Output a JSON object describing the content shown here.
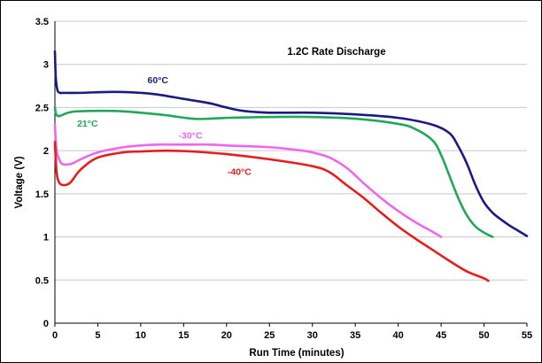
{
  "chart_data": {
    "type": "line",
    "title": "1.2C Rate Discharge",
    "xlabel": "Run Time (minutes)",
    "ylabel": "Voltage (V)",
    "xlim": [
      0,
      55
    ],
    "ylim": [
      0,
      3.5
    ],
    "x_ticks": [
      "0",
      "5",
      "10",
      "15",
      "20",
      "25",
      "30",
      "35",
      "40",
      "45",
      "50",
      "55"
    ],
    "y_ticks": [
      "0",
      "0.5",
      "1",
      "1.5",
      "2",
      "2.5",
      "3",
      "3.5"
    ],
    "grid": "horizontal",
    "series": [
      {
        "name": "60°C",
        "color": "#1a1a80",
        "x": [
          0,
          0.1,
          0.3,
          0.6,
          1,
          3,
          6,
          8,
          10,
          12,
          15,
          18,
          20,
          22,
          25,
          30,
          35,
          40,
          44,
          46,
          47,
          48,
          49,
          50,
          51,
          52,
          53,
          54,
          55
        ],
        "y": [
          3.15,
          2.85,
          2.7,
          2.67,
          2.67,
          2.67,
          2.68,
          2.68,
          2.67,
          2.65,
          2.6,
          2.55,
          2.5,
          2.46,
          2.44,
          2.44,
          2.42,
          2.38,
          2.3,
          2.2,
          2.05,
          1.85,
          1.6,
          1.4,
          1.28,
          1.2,
          1.13,
          1.07,
          1.01
        ]
      },
      {
        "name": "21°C",
        "color": "#1fa85a",
        "x": [
          0,
          0.15,
          0.5,
          1,
          2,
          4,
          7,
          10,
          13,
          16,
          18,
          20,
          25,
          30,
          35,
          40,
          42,
          44,
          45,
          46,
          47,
          48,
          49,
          50,
          51
        ],
        "y": [
          2.5,
          2.42,
          2.4,
          2.42,
          2.45,
          2.46,
          2.46,
          2.44,
          2.41,
          2.37,
          2.37,
          2.38,
          2.39,
          2.39,
          2.37,
          2.31,
          2.25,
          2.12,
          1.95,
          1.7,
          1.45,
          1.25,
          1.12,
          1.05,
          1.0
        ]
      },
      {
        "name": "-30°C",
        "color": "#ee66ee",
        "x": [
          0,
          0.2,
          0.6,
          1,
          2,
          3,
          5,
          8,
          10,
          12,
          15,
          18,
          20,
          25,
          28,
          30,
          32,
          34,
          36,
          38,
          40,
          42,
          44,
          45
        ],
        "y": [
          2.3,
          2.0,
          1.88,
          1.84,
          1.85,
          1.9,
          1.98,
          2.04,
          2.06,
          2.07,
          2.07,
          2.07,
          2.06,
          2.04,
          2.01,
          1.98,
          1.92,
          1.8,
          1.62,
          1.45,
          1.3,
          1.17,
          1.06,
          1.0
        ]
      },
      {
        "name": "-40°C",
        "color": "#e81c1c",
        "x": [
          0,
          0.2,
          0.5,
          1,
          1.8,
          3,
          5,
          8,
          10,
          13,
          16,
          20,
          25,
          30,
          32,
          34,
          36,
          38,
          40,
          42,
          44,
          46,
          48,
          50,
          50.5
        ],
        "y": [
          2.1,
          1.75,
          1.63,
          1.6,
          1.63,
          1.78,
          1.92,
          1.98,
          1.99,
          2.0,
          1.99,
          1.96,
          1.9,
          1.82,
          1.75,
          1.6,
          1.45,
          1.28,
          1.12,
          0.98,
          0.85,
          0.72,
          0.6,
          0.52,
          0.49
        ]
      }
    ]
  }
}
